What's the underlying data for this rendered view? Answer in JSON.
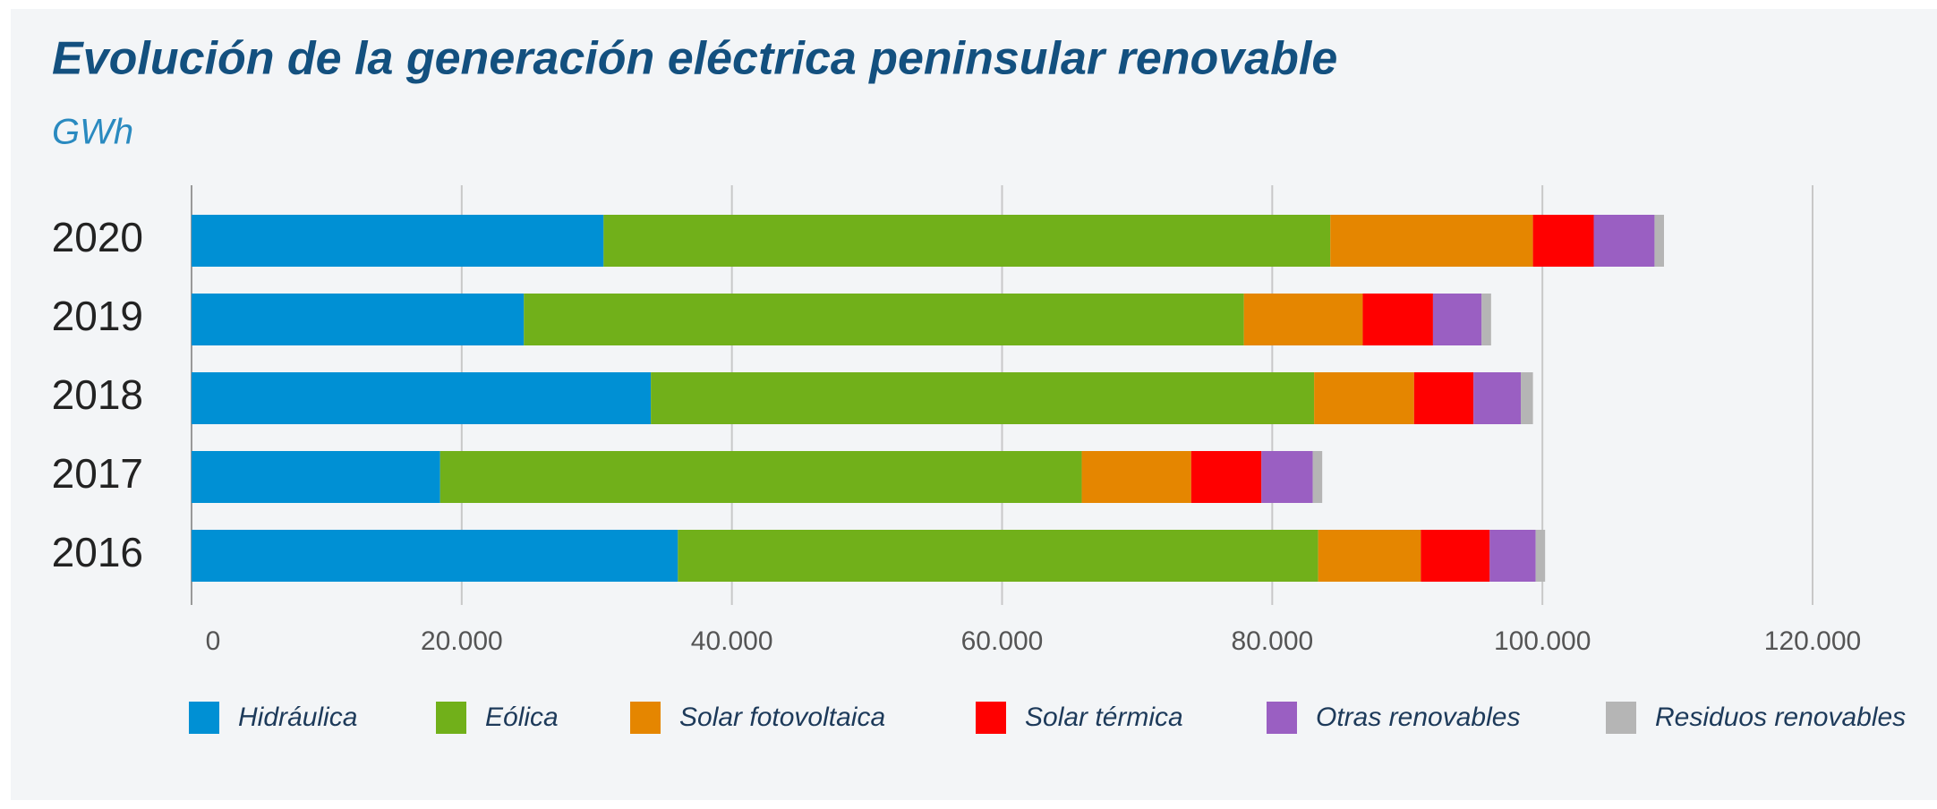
{
  "chart_data": {
    "type": "stacked-bar-horizontal",
    "title": "Evolución de la generación eléctrica peninsular renovable",
    "subtitle": "GWh",
    "categories": [
      "2020",
      "2019",
      "2018",
      "2017",
      "2016"
    ],
    "series": [
      {
        "name": "Hidráulica",
        "color": "#0090d4",
        "values": [
          30500,
          24600,
          34000,
          18400,
          36000
        ]
      },
      {
        "name": "Eólica",
        "color": "#71b01a",
        "values": [
          53800,
          53300,
          49100,
          47500,
          47400
        ]
      },
      {
        "name": "Solar fotovoltaica",
        "color": "#e58600",
        "values": [
          15000,
          8800,
          7400,
          8100,
          7600
        ]
      },
      {
        "name": "Solar térmica",
        "color": "#ff0000",
        "values": [
          4500,
          5200,
          4400,
          5200,
          5100
        ]
      },
      {
        "name": "Otras renovables",
        "color": "#9a5fc2",
        "values": [
          4500,
          3600,
          3500,
          3800,
          3400
        ]
      },
      {
        "name": "Residuos renovables",
        "color": "#b5b5b5",
        "values": [
          700,
          700,
          900,
          700,
          700
        ]
      }
    ],
    "xlim": [
      0,
      120000
    ],
    "xticks": [
      0,
      {
        "value": 20000,
        "label": "20.000"
      },
      {
        "value": 40000,
        "label": "40.000"
      },
      {
        "value": 60000,
        "label": "60.000"
      },
      {
        "value": 80000,
        "label": "80.000"
      },
      {
        "value": 100000,
        "label": "100.000"
      },
      {
        "value": 120000,
        "label": "120.000"
      }
    ],
    "grid": true
  }
}
